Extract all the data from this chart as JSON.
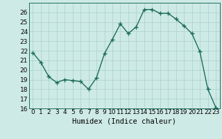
{
  "x": [
    0,
    1,
    2,
    3,
    4,
    5,
    6,
    7,
    8,
    9,
    10,
    11,
    12,
    13,
    14,
    15,
    16,
    17,
    18,
    19,
    20,
    21,
    22,
    23
  ],
  "y": [
    21.8,
    20.8,
    19.3,
    18.7,
    19.0,
    18.9,
    18.8,
    18.0,
    19.2,
    21.7,
    23.2,
    24.8,
    23.8,
    24.5,
    26.3,
    26.3,
    25.9,
    25.9,
    25.3,
    24.6,
    23.8,
    21.9,
    18.0,
    16.1
  ],
  "line_color": "#1a6b5a",
  "marker": "+",
  "background_color": "#ceeae6",
  "grid_color": "#aed4ce",
  "xlabel": "Humidex (Indice chaleur)",
  "ylim": [
    16,
    27
  ],
  "xlim": [
    -0.5,
    23.5
  ],
  "yticks": [
    16,
    17,
    18,
    19,
    20,
    21,
    22,
    23,
    24,
    25,
    26
  ],
  "xticks": [
    0,
    1,
    2,
    3,
    4,
    5,
    6,
    7,
    8,
    9,
    10,
    11,
    12,
    13,
    14,
    15,
    16,
    17,
    18,
    19,
    20,
    21,
    22,
    23
  ],
  "tick_fontsize": 6.5,
  "xlabel_fontsize": 7.5,
  "line_width": 1.0,
  "marker_size": 4,
  "marker_edge_width": 1.0
}
